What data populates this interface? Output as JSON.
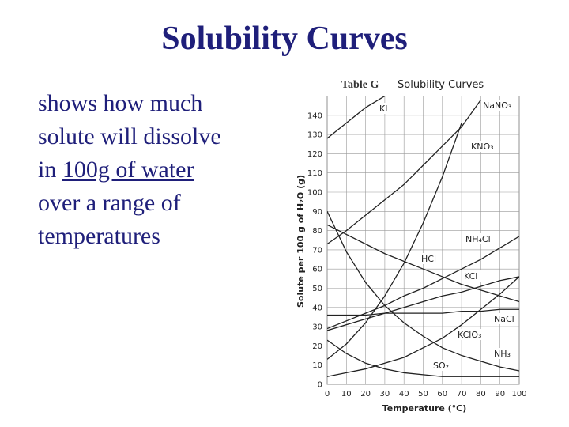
{
  "slide": {
    "title": "Solubility Curves",
    "body": [
      "shows how much",
      "solute will dissolve",
      [
        "in ",
        "100g of water"
      ],
      "over a range of",
      "temperatures"
    ]
  },
  "chart_data": {
    "type": "line",
    "table": "Table G",
    "title": "Solubility Curves",
    "x_label": "Temperature (°C)",
    "y_label": "Solute per 100 g of H₂O (g)",
    "x": [
      0,
      10,
      20,
      30,
      40,
      50,
      60,
      70,
      80,
      90,
      100
    ],
    "xlim": [
      0,
      100
    ],
    "xticks": [
      0,
      10,
      20,
      30,
      40,
      50,
      60,
      70,
      80,
      90,
      100
    ],
    "ylim": [
      0,
      150
    ],
    "yticks": [
      0,
      10,
      20,
      30,
      40,
      50,
      60,
      70,
      80,
      90,
      100,
      110,
      120,
      130,
      140
    ],
    "grid": true,
    "series": [
      {
        "name": "KI",
        "color": "#222222",
        "values": [
          128,
          136,
          144,
          150,
          null,
          null,
          null,
          null,
          null,
          null,
          null
        ]
      },
      {
        "name": "NaNO₃",
        "color": "#222222",
        "values": [
          73,
          80,
          88,
          96,
          104,
          114,
          124,
          134,
          148,
          null,
          null
        ]
      },
      {
        "name": "KNO₃",
        "color": "#222222",
        "values": [
          13,
          21,
          32,
          46,
          63,
          84,
          108,
          136,
          null,
          null,
          null
        ]
      },
      {
        "name": "NH₄Cl",
        "color": "#222222",
        "values": [
          29,
          33,
          37,
          41,
          46,
          50,
          55,
          60,
          65,
          71,
          77
        ]
      },
      {
        "name": "HCl",
        "color": "#222222",
        "values": [
          83,
          78,
          73,
          68,
          64,
          60,
          56,
          52,
          49,
          46,
          43
        ]
      },
      {
        "name": "KCl",
        "color": "#222222",
        "values": [
          28,
          31,
          34,
          37,
          40,
          43,
          46,
          48,
          51,
          54,
          56
        ]
      },
      {
        "name": "NaCl",
        "color": "#222222",
        "values": [
          36,
          36,
          36,
          37,
          37,
          37,
          37,
          38,
          38,
          39,
          39
        ]
      },
      {
        "name": "KClO₃",
        "color": "#222222",
        "values": [
          4,
          6,
          8,
          11,
          14,
          19,
          24,
          31,
          39,
          47,
          56
        ]
      },
      {
        "name": "NH₃",
        "color": "#222222",
        "values": [
          90,
          69,
          53,
          41,
          32,
          25,
          19,
          15,
          12,
          9,
          7
        ]
      },
      {
        "name": "SO₂",
        "color": "#222222",
        "values": [
          23,
          16,
          11,
          8,
          6,
          5,
          4,
          4,
          4,
          4,
          4
        ]
      }
    ]
  }
}
